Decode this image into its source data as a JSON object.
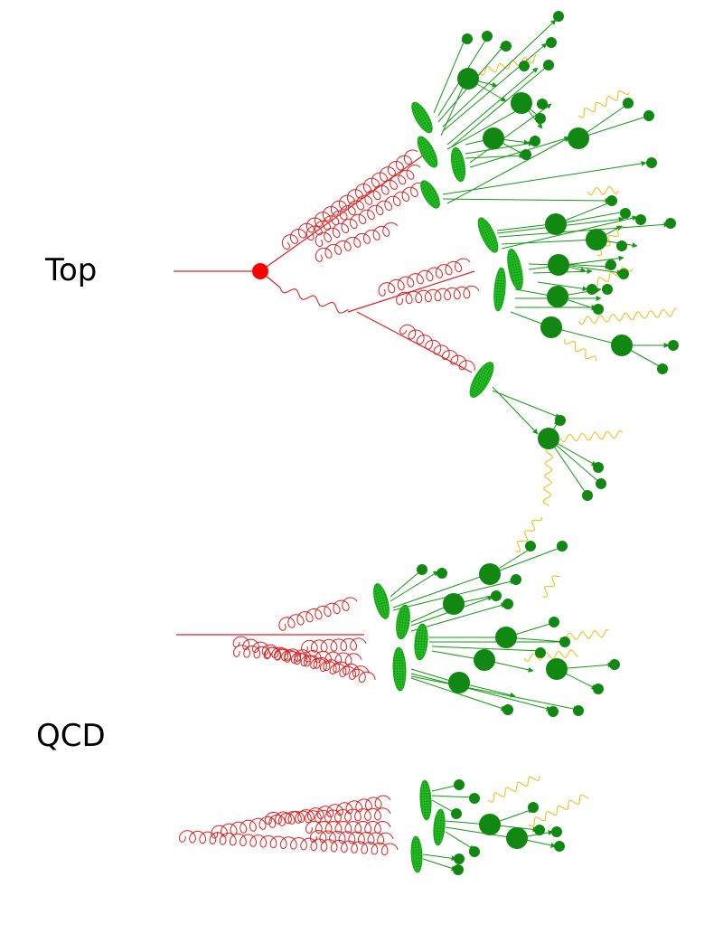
{
  "labels": {
    "top": "Top",
    "qcd": "QCD"
  },
  "colors": {
    "parton_line": "#e02020",
    "gluon": "#e02020",
    "vertex": "#ff0000",
    "cluster": "#22bb22",
    "hadron": "#118811",
    "arrow": "#119911",
    "photon": "#f0c020"
  }
}
